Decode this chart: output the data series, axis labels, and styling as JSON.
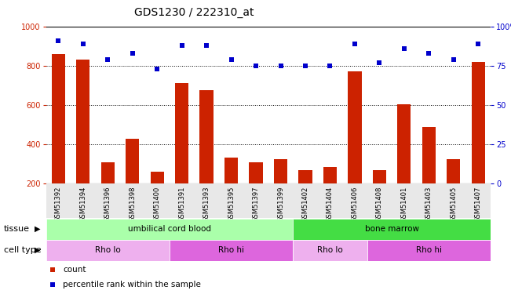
{
  "title": "GDS1230 / 222310_at",
  "samples": [
    "GSM51392",
    "GSM51394",
    "GSM51396",
    "GSM51398",
    "GSM51400",
    "GSM51391",
    "GSM51393",
    "GSM51395",
    "GSM51397",
    "GSM51399",
    "GSM51402",
    "GSM51404",
    "GSM51406",
    "GSM51408",
    "GSM51401",
    "GSM51403",
    "GSM51405",
    "GSM51407"
  ],
  "counts": [
    860,
    830,
    310,
    430,
    260,
    710,
    675,
    335,
    310,
    325,
    270,
    285,
    770,
    270,
    605,
    490,
    325,
    820
  ],
  "percentiles": [
    91,
    89,
    79,
    83,
    73,
    88,
    88,
    79,
    75,
    75,
    75,
    75,
    89,
    77,
    86,
    83,
    79,
    89
  ],
  "ymin": 200,
  "ymax": 1000,
  "y_left_ticks": [
    200,
    400,
    600,
    800,
    1000
  ],
  "y_right_ticks": [
    0,
    25,
    50,
    75,
    100
  ],
  "tissue_groups": [
    {
      "label": "umbilical cord blood",
      "start": 0,
      "end": 10,
      "color": "#aaffaa"
    },
    {
      "label": "bone marrow",
      "start": 10,
      "end": 18,
      "color": "#44dd44"
    }
  ],
  "cell_type_groups": [
    {
      "label": "Rho lo",
      "start": 0,
      "end": 5,
      "color": "#eeb0ee"
    },
    {
      "label": "Rho hi",
      "start": 5,
      "end": 10,
      "color": "#dd66dd"
    },
    {
      "label": "Rho lo",
      "start": 10,
      "end": 13,
      "color": "#eeb0ee"
    },
    {
      "label": "Rho hi",
      "start": 13,
      "end": 18,
      "color": "#dd66dd"
    }
  ],
  "bar_color": "#cc2200",
  "dot_color": "#0000cc",
  "background_color": "#ffffff",
  "title_fontsize": 10,
  "tick_fontsize": 7,
  "annotation_fontsize": 8
}
